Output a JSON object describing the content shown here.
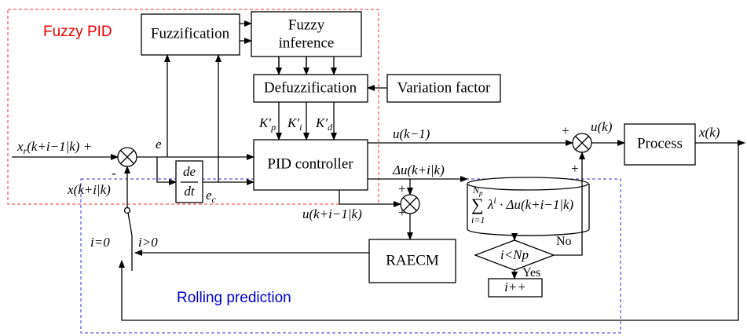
{
  "groups": {
    "fuzzy_pid": "Fuzzy PID",
    "rolling": "Rolling prediction"
  },
  "blocks": {
    "fuzzification": "Fuzzification",
    "inference": [
      "Fuzzy",
      "inference"
    ],
    "defuzzification": "Defuzzification",
    "variation": "Variation factor",
    "pid": "PID controller",
    "process": "Process",
    "raecm": "RAECM",
    "increment": "i++",
    "derivative": [
      "de",
      "dt"
    ],
    "decision": "i<Np"
  },
  "signals": {
    "reference": [
      "x",
      "r",
      "(k+i−1|k) +"
    ],
    "minus": "-",
    "prediction": "x(k+i|k)",
    "error": "e",
    "error_change": [
      "e",
      "c"
    ],
    "kp": [
      "K′",
      "p"
    ],
    "ki": [
      "K′",
      "i"
    ],
    "kd": [
      "K′",
      "d"
    ],
    "u_prev": "u(k−1)",
    "plus_main": "+",
    "control": "u(k)",
    "plus_lower": "+",
    "output": "x(k)",
    "delta_u": "Δu(k+i|k)",
    "plus_delta": "+",
    "u_pred": "u(k+i−1|k)",
    "plus_pred": "+",
    "no": "No",
    "yes": "Yes",
    "switch_zero": "i=0",
    "switch_pos": "i>0"
  },
  "formula": {
    "sum": "∑",
    "upper": [
      "N",
      "p"
    ],
    "lower": "i=1",
    "term": "λ",
    "power": "i",
    "rest": " · Δu(k+i−1|k)"
  }
}
